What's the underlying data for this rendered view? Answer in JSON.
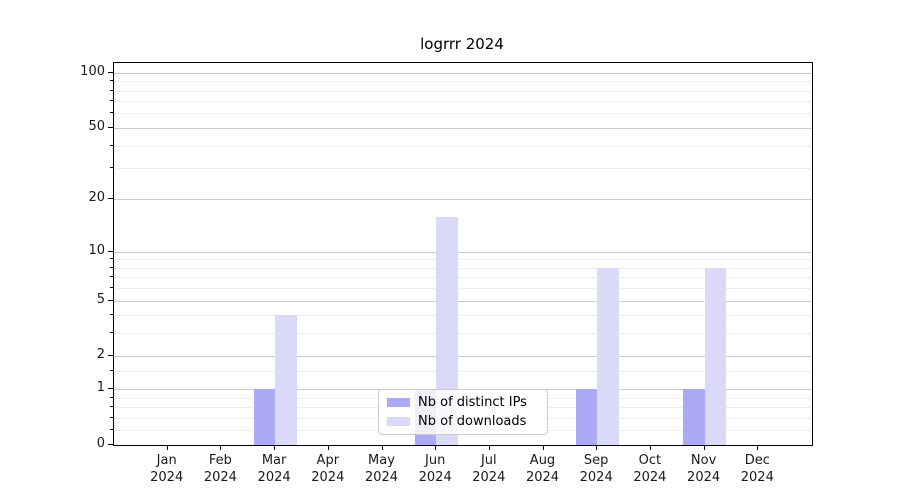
{
  "figure": {
    "title": "logrrr 2024"
  },
  "chart_data": {
    "type": "bar",
    "title": "logrrr 2024",
    "categories": [
      "Jan",
      "Feb",
      "Mar",
      "Apr",
      "May",
      "Jun",
      "Jul",
      "Aug",
      "Sep",
      "Oct",
      "Nov",
      "Dec"
    ],
    "x_year_label": "2024",
    "series": [
      {
        "name": "Nb of distinct IPs",
        "color": "#aaaaf5",
        "values": [
          0,
          0,
          1,
          0,
          0,
          1,
          0,
          0,
          1,
          0,
          1,
          0
        ]
      },
      {
        "name": "Nb of downloads",
        "color": "#dadaf8",
        "values": [
          0,
          0,
          4,
          0,
          0,
          16,
          0,
          0,
          8,
          0,
          8,
          0
        ]
      }
    ],
    "yscale": "log1p",
    "ylim": [
      0,
      113
    ],
    "y_major_ticks": [
      0,
      1,
      2,
      5,
      10,
      20,
      50,
      100
    ],
    "y_minor_ticks": [
      0.2,
      0.4,
      0.6,
      0.8,
      1.5,
      3,
      4,
      6,
      7,
      8,
      9,
      30,
      40,
      60,
      70,
      80,
      90
    ],
    "grid": "horizontal",
    "legend_position": "lower center",
    "legend_labels": [
      "Nb of distinct IPs",
      "Nb of downloads"
    ]
  },
  "colors": {
    "bar_distinct_ips": "#aaaaf5",
    "bar_downloads": "#dadaf8",
    "grid_major": "#cbcbcb",
    "grid_minor": "#ececec",
    "spine": "#000000",
    "tick_text": "#1a1a1a",
    "legend_border": "#cccccc"
  }
}
